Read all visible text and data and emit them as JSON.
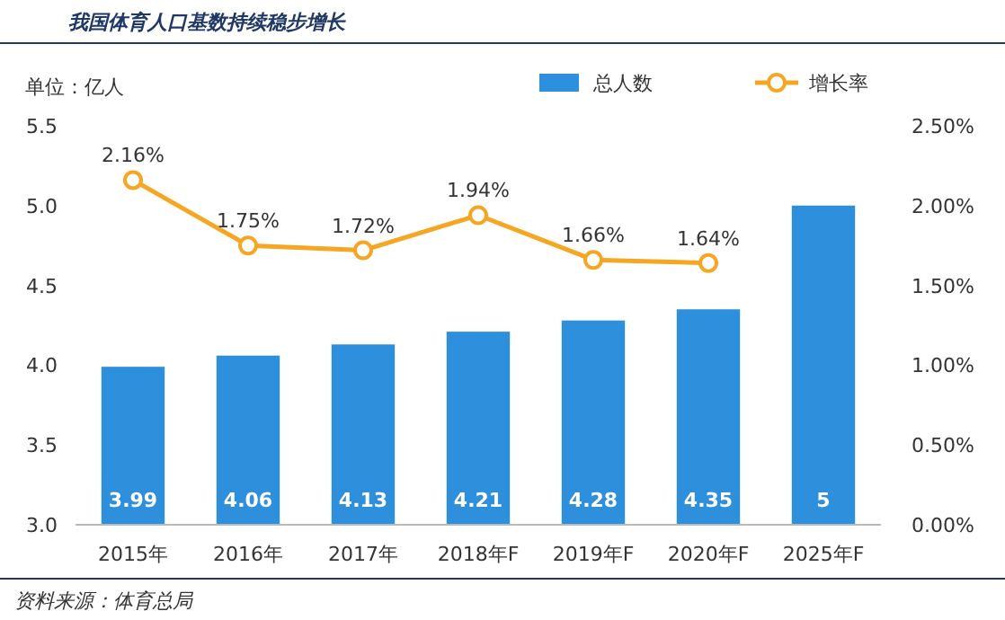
{
  "chart_data": {
    "type": "bar",
    "title": "我国体育人口基数持续稳步增长",
    "ylabel": "单位：亿人",
    "categories": [
      "2015年",
      "2016年",
      "2017年",
      "2018年F",
      "2019年F",
      "2020年F",
      "2025年F"
    ],
    "series": [
      {
        "name": "总人数",
        "color": "#2e8fdc",
        "values": [
          3.99,
          4.06,
          4.13,
          4.21,
          4.28,
          4.35,
          5
        ],
        "value_labels": [
          "3.99",
          "4.06",
          "4.13",
          "4.21",
          "4.28",
          "4.35",
          "5"
        ]
      },
      {
        "name": "增长率",
        "type": "line",
        "axis": "y2",
        "color": "#f5a623",
        "values": [
          2.16,
          1.75,
          1.72,
          1.94,
          1.66,
          1.64,
          null
        ],
        "value_labels": [
          "2.16%",
          "1.75%",
          "1.72%",
          "1.94%",
          "1.66%",
          "1.64%",
          null
        ]
      }
    ],
    "ylim": [
      3.0,
      5.5
    ],
    "yticks": [
      {
        "value": 3.0,
        "label": "3.0"
      },
      {
        "value": 3.5,
        "label": "3.5"
      },
      {
        "value": 4.0,
        "label": "4.0"
      },
      {
        "value": 4.5,
        "label": "4.5"
      },
      {
        "value": 5.0,
        "label": "5.0"
      },
      {
        "value": 5.5,
        "label": "5.5"
      }
    ],
    "y2lim": [
      0,
      2.5
    ],
    "y2ticks": [
      {
        "value": 0,
        "label": "0.00%"
      },
      {
        "value": 0.5,
        "label": "0.50%"
      },
      {
        "value": 1.0,
        "label": "1.00%"
      },
      {
        "value": 1.5,
        "label": "1.50%"
      },
      {
        "value": 2.0,
        "label": "2.00%"
      },
      {
        "value": 2.5,
        "label": "2.50%"
      }
    ],
    "marker": "circle",
    "legend": "top right",
    "grid": false,
    "annotations": [
      "资料来源：体育总局"
    ]
  }
}
